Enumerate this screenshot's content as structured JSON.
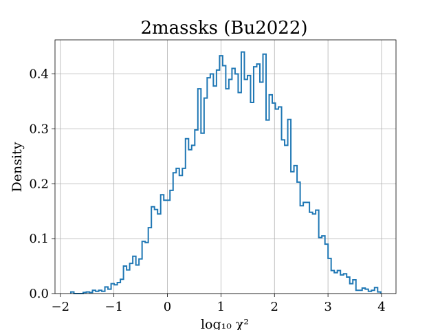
{
  "chart_data": {
    "type": "histogram",
    "title": "2massks (Bu2022)",
    "xlabel": "log₁₀ χ²",
    "ylabel": "Density",
    "xlim": [
      -2.1,
      4.27
    ],
    "ylim": [
      0,
      0.462
    ],
    "grid": true,
    "legend": "none",
    "line_color": "#1f77b4",
    "xticks": [
      -2,
      -1,
      0,
      1,
      2,
      3,
      4
    ],
    "xtick_labels": [
      "−2",
      "−1",
      "0",
      "1",
      "2",
      "3",
      "4"
    ],
    "yticks": [
      0.0,
      0.1,
      0.2,
      0.3,
      0.4
    ],
    "ytick_labels": [
      "0.0",
      "0.1",
      "0.2",
      "0.3",
      "0.4"
    ],
    "bin_start": -1.805,
    "bin_width": 0.0579,
    "densities": [
      0.003,
      0.0,
      0.0,
      0.0,
      0.002,
      0.003,
      0.002,
      0.006,
      0.004,
      0.006,
      0.004,
      0.012,
      0.008,
      0.018,
      0.016,
      0.02,
      0.026,
      0.05,
      0.043,
      0.055,
      0.068,
      0.052,
      0.063,
      0.095,
      0.093,
      0.12,
      0.158,
      0.153,
      0.145,
      0.18,
      0.17,
      0.17,
      0.188,
      0.22,
      0.228,
      0.215,
      0.228,
      0.282,
      0.262,
      0.27,
      0.298,
      0.373,
      0.292,
      0.356,
      0.393,
      0.4,
      0.378,
      0.407,
      0.433,
      0.415,
      0.373,
      0.39,
      0.41,
      0.4,
      0.366,
      0.44,
      0.39,
      0.397,
      0.348,
      0.413,
      0.418,
      0.385,
      0.436,
      0.316,
      0.362,
      0.347,
      0.336,
      0.34,
      0.28,
      0.27,
      0.317,
      0.222,
      0.233,
      0.203,
      0.16,
      0.166,
      0.166,
      0.148,
      0.145,
      0.152,
      0.102,
      0.105,
      0.09,
      0.064,
      0.042,
      0.038,
      0.042,
      0.034,
      0.036,
      0.03,
      0.018,
      0.025,
      0.006,
      0.006,
      0.01,
      0.008,
      0.004,
      0.006,
      0.011,
      0.003
    ]
  }
}
